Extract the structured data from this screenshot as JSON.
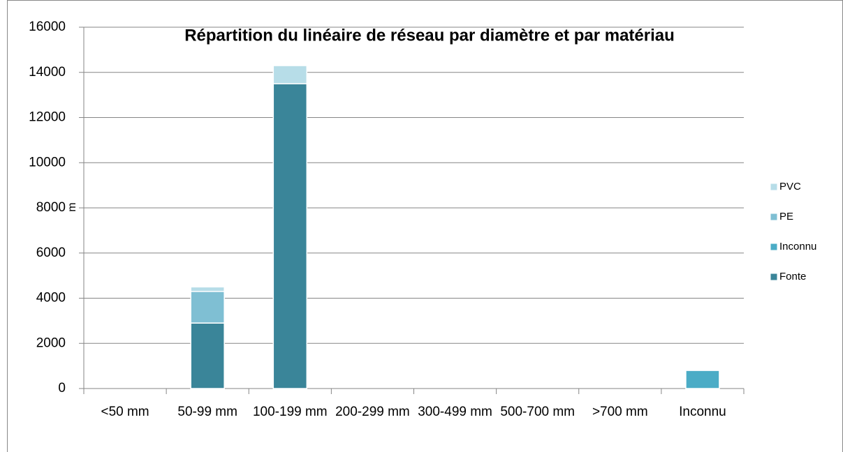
{
  "chart_data": {
    "type": "stacked_bar",
    "title": "Répartition du linéaire de réseau par diamètre et par matériau",
    "y_label": "m",
    "categories": [
      "<50 mm",
      "50-99 mm",
      "100-199 mm",
      "200-299 mm",
      "300-499 mm",
      "500-700 mm",
      ">700 mm",
      "Inconnu"
    ],
    "series": [
      {
        "name": "Fonte",
        "color": "#3a8599",
        "values": [
          0,
          2900,
          13500,
          0,
          0,
          0,
          0,
          0
        ]
      },
      {
        "name": "Inconnu",
        "color": "#4bacc6",
        "values": [
          0,
          0,
          0,
          0,
          0,
          0,
          0,
          800
        ]
      },
      {
        "name": "PE",
        "color": "#7fbfd3",
        "values": [
          0,
          1400,
          0,
          0,
          0,
          0,
          0,
          0
        ]
      },
      {
        "name": "PVC",
        "color": "#b7dde8",
        "values": [
          0,
          200,
          800,
          0,
          0,
          0,
          0,
          0
        ]
      }
    ],
    "ylim": [
      0,
      16000
    ],
    "yticks": [
      0,
      2000,
      4000,
      6000,
      8000,
      10000,
      12000,
      14000,
      16000
    ],
    "grid": true,
    "legend": "right"
  }
}
